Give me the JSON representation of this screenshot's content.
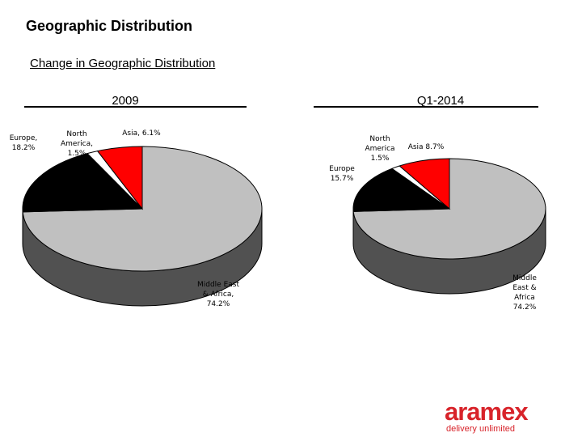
{
  "page": {
    "title": "Geographic Distribution",
    "subtitle": "Change in Geographic Distribution"
  },
  "chart_data": [
    {
      "type": "pie",
      "title": "2009",
      "slices": [
        {
          "label": "Middle East & Africa",
          "display": "Middle East\n& Africa,\n74.2%",
          "value": 74.2,
          "color": "#c0c0c0"
        },
        {
          "label": "Europe",
          "display": "Europe,\n18.2%",
          "value": 18.2,
          "color": "#000000"
        },
        {
          "label": "North America",
          "display": "North\nAmerica,\n1.5%",
          "value": 1.5,
          "color": "#ffffff"
        },
        {
          "label": "Asia",
          "display": "Asia, 6.1%",
          "value": 6.1,
          "color": "#ff0000"
        }
      ]
    },
    {
      "type": "pie",
      "title": "Q1-2014",
      "slices": [
        {
          "label": "Middle East & Africa",
          "display": "Middle\nEast &\nAfrica\n74.2%",
          "value": 74.2,
          "color": "#c0c0c0"
        },
        {
          "label": "Europe",
          "display": "Europe\n15.7%",
          "value": 15.7,
          "color": "#000000"
        },
        {
          "label": "North America",
          "display": "North\nAmerica\n1.5%",
          "value": 1.5,
          "color": "#ffffff"
        },
        {
          "label": "Asia",
          "display": "Asia 8.7%",
          "value": 8.7,
          "color": "#ff0000"
        }
      ]
    }
  ],
  "logo": {
    "word": "aramex",
    "tagline": "delivery unlimited"
  }
}
